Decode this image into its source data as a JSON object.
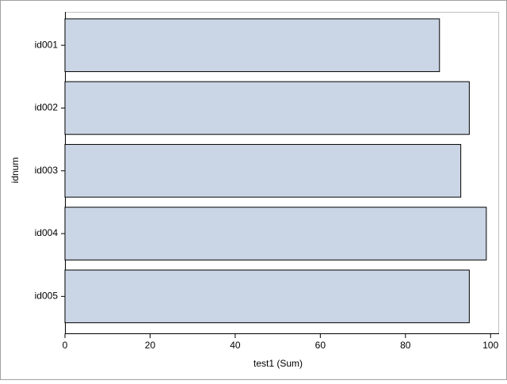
{
  "chart_data": {
    "type": "barh",
    "x_label": "test1 (Sum)",
    "y_label": "idnum",
    "categories": [
      "id001",
      "id002",
      "id003",
      "id004",
      "id005"
    ],
    "values": [
      88,
      95,
      93,
      99,
      95
    ],
    "color": "#cad5e5",
    "xlim": [
      0,
      102
    ],
    "xticks": [
      0,
      20,
      40,
      60,
      80,
      100
    ]
  }
}
